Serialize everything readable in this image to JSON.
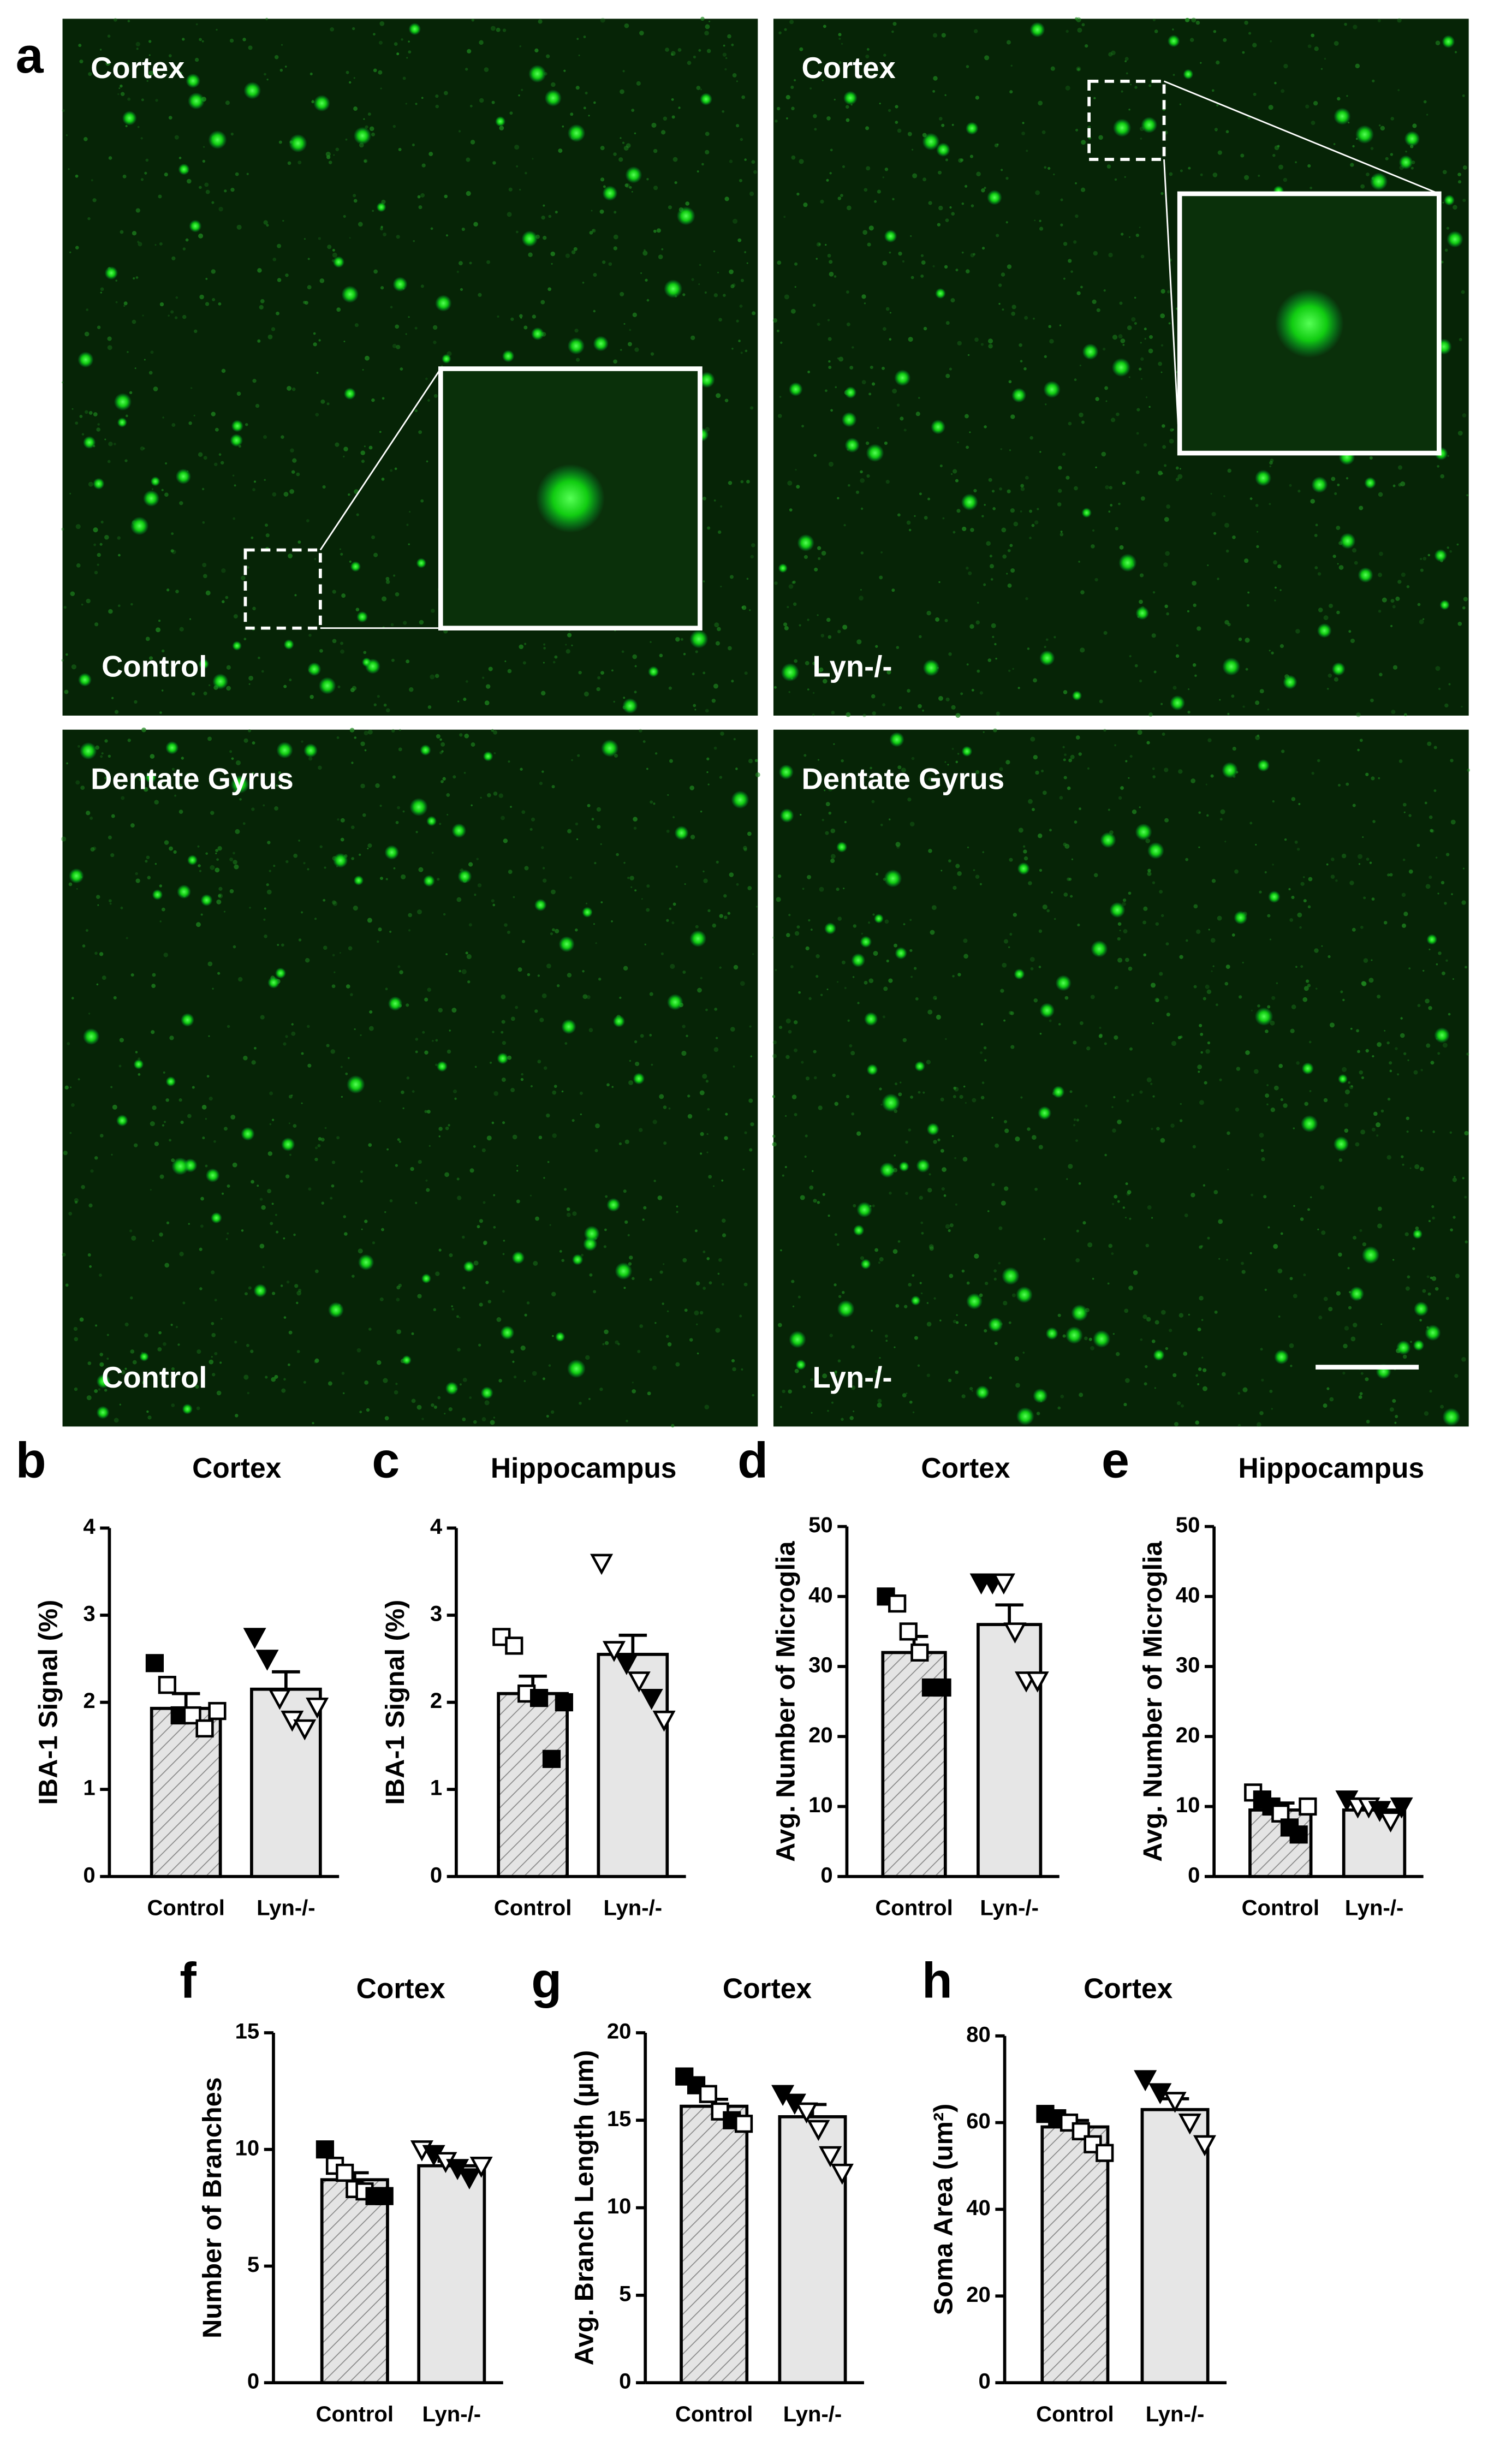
{
  "panel_letter": "a",
  "images": [
    {
      "title": "Cortex",
      "label": "Control"
    },
    {
      "title": "Cortex",
      "label": "Lyn-/-"
    },
    {
      "title": "Dentate Gyrus",
      "label": "Control"
    },
    {
      "title": "Dentate Gyrus",
      "label": "Lyn-/-"
    }
  ],
  "chart_data": [
    {
      "type": "bar",
      "panel": "b",
      "title": "Cortex",
      "ylabel": "IBA-1 Signal (%)",
      "categories": [
        "Control",
        "Lyn-/-"
      ],
      "values": [
        1.93,
        2.15
      ],
      "errors": [
        0.17,
        0.2
      ],
      "points": [
        [
          {
            "v": 2.45,
            "f": true
          },
          {
            "v": 2.2,
            "f": false
          },
          {
            "v": 1.85,
            "f": true
          },
          {
            "v": 1.85,
            "f": false
          },
          {
            "v": 1.7,
            "f": false
          },
          {
            "v": 1.9,
            "f": false
          }
        ],
        [
          {
            "v": 2.75,
            "f": true
          },
          {
            "v": 2.5,
            "f": true
          },
          {
            "v": 2.05,
            "f": false
          },
          {
            "v": 1.8,
            "f": false
          },
          {
            "v": 1.7,
            "f": false
          },
          {
            "v": 1.95,
            "f": false
          }
        ]
      ],
      "ylim": [
        0,
        4
      ],
      "yticks": [
        0,
        1,
        2,
        3,
        4
      ]
    },
    {
      "type": "bar",
      "panel": "c",
      "title": "Hippocampus",
      "ylabel": "IBA-1 Signal (%)",
      "categories": [
        "Control",
        "Lyn-/-"
      ],
      "values": [
        2.1,
        2.55
      ],
      "errors": [
        0.2,
        0.22
      ],
      "points": [
        [
          {
            "v": 2.75,
            "f": false
          },
          {
            "v": 2.65,
            "f": false
          },
          {
            "v": 2.1,
            "f": false
          },
          {
            "v": 2.05,
            "f": true
          },
          {
            "v": 1.35,
            "f": true
          },
          {
            "v": 2.0,
            "f": true
          }
        ],
        [
          {
            "v": 3.6,
            "f": false
          },
          {
            "v": 2.6,
            "f": false
          },
          {
            "v": 2.45,
            "f": true
          },
          {
            "v": 2.25,
            "f": false
          },
          {
            "v": 2.05,
            "f": true
          },
          {
            "v": 1.8,
            "f": false
          }
        ]
      ],
      "ylim": [
        0,
        4
      ],
      "yticks": [
        0,
        1,
        2,
        3,
        4
      ]
    },
    {
      "type": "bar",
      "panel": "d",
      "title": "Cortex",
      "ylabel": "Avg. Number of Microglia",
      "categories": [
        "Control",
        "Lyn-/-"
      ],
      "values": [
        32,
        36
      ],
      "errors": [
        2.3,
        2.8
      ],
      "points": [
        [
          {
            "v": 40,
            "f": true
          },
          {
            "v": 39,
            "f": false
          },
          {
            "v": 35,
            "f": false
          },
          {
            "v": 32,
            "f": false
          },
          {
            "v": 27,
            "f": true
          },
          {
            "v": 27,
            "f": true
          }
        ],
        [
          {
            "v": 42,
            "f": true
          },
          {
            "v": 42,
            "f": true
          },
          {
            "v": 42,
            "f": false
          },
          {
            "v": 35,
            "f": false
          },
          {
            "v": 28,
            "f": false
          },
          {
            "v": 28,
            "f": false
          }
        ]
      ],
      "ylim": [
        0,
        50
      ],
      "yticks": [
        0,
        10,
        20,
        30,
        40,
        50
      ]
    },
    {
      "type": "bar",
      "panel": "e",
      "title": "Hippocampus",
      "ylabel": "Avg. Number of Microglia",
      "categories": [
        "Control",
        "Lyn-/-"
      ],
      "values": [
        9.5,
        9.5
      ],
      "errors": [
        1,
        0.6
      ],
      "points": [
        [
          {
            "v": 12,
            "f": false
          },
          {
            "v": 11,
            "f": true
          },
          {
            "v": 10,
            "f": true
          },
          {
            "v": 9,
            "f": false
          },
          {
            "v": 7,
            "f": true
          },
          {
            "v": 6,
            "f": true
          },
          {
            "v": 10,
            "f": false
          }
        ],
        [
          {
            "v": 11,
            "f": true
          },
          {
            "v": 10,
            "f": false
          },
          {
            "v": 10,
            "f": false
          },
          {
            "v": 9.5,
            "f": true
          },
          {
            "v": 8,
            "f": false
          },
          {
            "v": 10,
            "f": true
          }
        ]
      ],
      "ylim": [
        0,
        50
      ],
      "yticks": [
        0,
        10,
        20,
        30,
        40,
        50
      ]
    },
    {
      "type": "bar",
      "panel": "f",
      "title": "Cortex",
      "ylabel": "Number of Branches",
      "categories": [
        "Control",
        "Lyn-/-"
      ],
      "values": [
        8.7,
        9.3
      ],
      "errors": [
        0.3,
        0.2
      ],
      "points": [
        [
          {
            "v": 10,
            "f": true
          },
          {
            "v": 9.3,
            "f": false
          },
          {
            "v": 9,
            "f": false
          },
          {
            "v": 8.3,
            "f": false
          },
          {
            "v": 8.2,
            "f": false
          },
          {
            "v": 8,
            "f": true
          },
          {
            "v": 8,
            "f": true
          }
        ],
        [
          {
            "v": 10,
            "f": false
          },
          {
            "v": 9.8,
            "f": true
          },
          {
            "v": 9.5,
            "f": false
          },
          {
            "v": 9.2,
            "f": true
          },
          {
            "v": 8.8,
            "f": true
          },
          {
            "v": 9.3,
            "f": false
          }
        ]
      ],
      "ylim": [
        0,
        15
      ],
      "yticks": [
        0,
        5,
        10,
        15
      ]
    },
    {
      "type": "bar",
      "panel": "g",
      "title": "Cortex",
      "ylabel": "Avg. Branch Length (µm)",
      "categories": [
        "Control",
        "Lyn-/-"
      ],
      "values": [
        15.8,
        15.2
      ],
      "errors": [
        0.4,
        0.7
      ],
      "points": [
        [
          {
            "v": 17.5,
            "f": true
          },
          {
            "v": 17,
            "f": true
          },
          {
            "v": 16.5,
            "f": false
          },
          {
            "v": 15.5,
            "f": false
          },
          {
            "v": 15,
            "f": true
          },
          {
            "v": 14.8,
            "f": false
          }
        ],
        [
          {
            "v": 16.5,
            "f": true
          },
          {
            "v": 16,
            "f": true
          },
          {
            "v": 15.5,
            "f": false
          },
          {
            "v": 14.5,
            "f": false
          },
          {
            "v": 13,
            "f": false
          },
          {
            "v": 12,
            "f": false
          }
        ]
      ],
      "ylim": [
        0,
        20
      ],
      "yticks": [
        0,
        5,
        10,
        15,
        20
      ]
    },
    {
      "type": "bar",
      "panel": "h",
      "title": "Cortex",
      "ylabel": "Soma Area (um²)",
      "categories": [
        "Control",
        "Lyn-/-"
      ],
      "values": [
        59,
        63
      ],
      "errors": [
        1.5,
        2.5
      ],
      "points": [
        [
          {
            "v": 62,
            "f": true
          },
          {
            "v": 61,
            "f": true
          },
          {
            "v": 60,
            "f": false
          },
          {
            "v": 58,
            "f": false
          },
          {
            "v": 55,
            "f": false
          },
          {
            "v": 53,
            "f": false
          }
        ],
        [
          {
            "v": 70,
            "f": true
          },
          {
            "v": 67,
            "f": true
          },
          {
            "v": 65,
            "f": false
          },
          {
            "v": 60,
            "f": false
          },
          {
            "v": 55,
            "f": false
          }
        ]
      ],
      "ylim": [
        0,
        80
      ],
      "yticks": [
        0,
        20,
        40,
        60,
        80
      ]
    }
  ]
}
